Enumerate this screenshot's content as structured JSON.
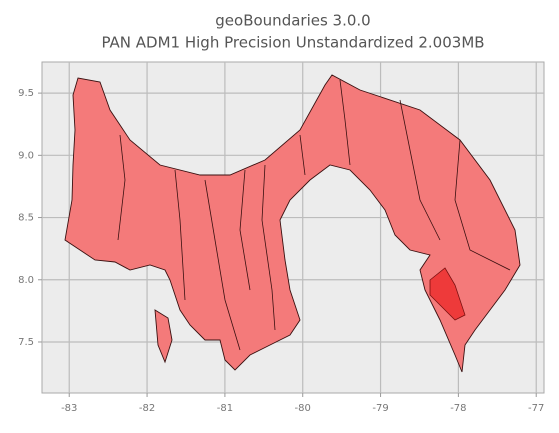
{
  "chart_data": {
    "type": "map",
    "title": "geoBoundaries 3.0.0",
    "subtitle": "PAN ADM1 High Precision Unstandardized 2.003MB",
    "xlim": [
      -83.35,
      -76.9
    ],
    "ylim": [
      7.09,
      9.75
    ],
    "xticks": [
      -83,
      -82,
      -81,
      -80,
      -79,
      -78,
      -77
    ],
    "yticks": [
      7.5,
      {
        "value": 8,
        "label": "8.0"
      },
      8.5,
      {
        "value": 9,
        "label": "9.0"
      },
      9.5
    ],
    "grid": true,
    "color": "#f47a7a"
  }
}
